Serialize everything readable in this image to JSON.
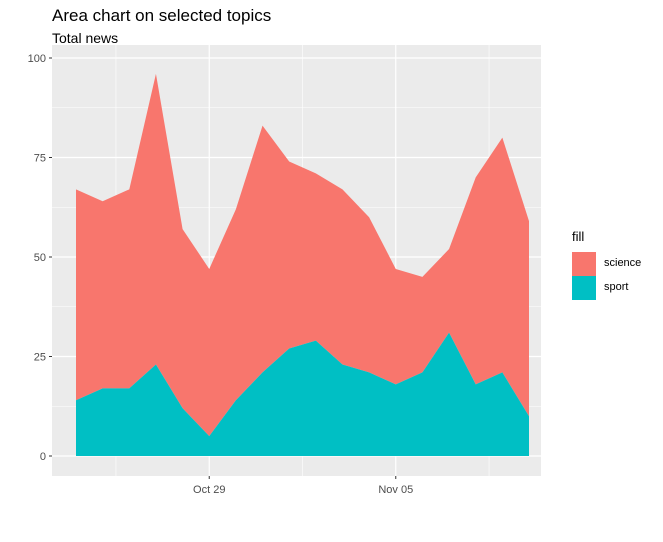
{
  "chart_data": {
    "type": "area",
    "title": "Area chart on selected topics",
    "subtitle": "Total news",
    "xlabel": "",
    "ylabel": "",
    "x": [
      "Oct 24",
      "Oct 25",
      "Oct 26",
      "Oct 27",
      "Oct 28",
      "Oct 29",
      "Oct 30",
      "Oct 31",
      "Nov 01",
      "Nov 02",
      "Nov 03",
      "Nov 04",
      "Nov 05",
      "Nov 06",
      "Nov 07",
      "Nov 08",
      "Nov 09",
      "Nov 10"
    ],
    "x_ticks": [
      {
        "label": "Oct 29",
        "x": "Oct 29"
      },
      {
        "label": "Nov 05",
        "x": "Nov 05"
      }
    ],
    "ylim": [
      0,
      100
    ],
    "y_ticks": [
      0,
      25,
      50,
      75,
      100
    ],
    "stacked": true,
    "grid": true,
    "legend_title": "fill",
    "legend_position": "right",
    "series": [
      {
        "name": "science",
        "color": "#F8766D",
        "values": [
          53,
          47,
          50,
          73,
          45,
          42,
          48,
          62,
          47,
          42,
          44,
          39,
          29,
          24,
          21,
          52,
          59,
          49
        ]
      },
      {
        "name": "sport",
        "color": "#00BFC4",
        "values": [
          14,
          17,
          17,
          23,
          12,
          5,
          14,
          21,
          27,
          29,
          23,
          21,
          18,
          21,
          31,
          18,
          21,
          10
        ]
      }
    ]
  }
}
